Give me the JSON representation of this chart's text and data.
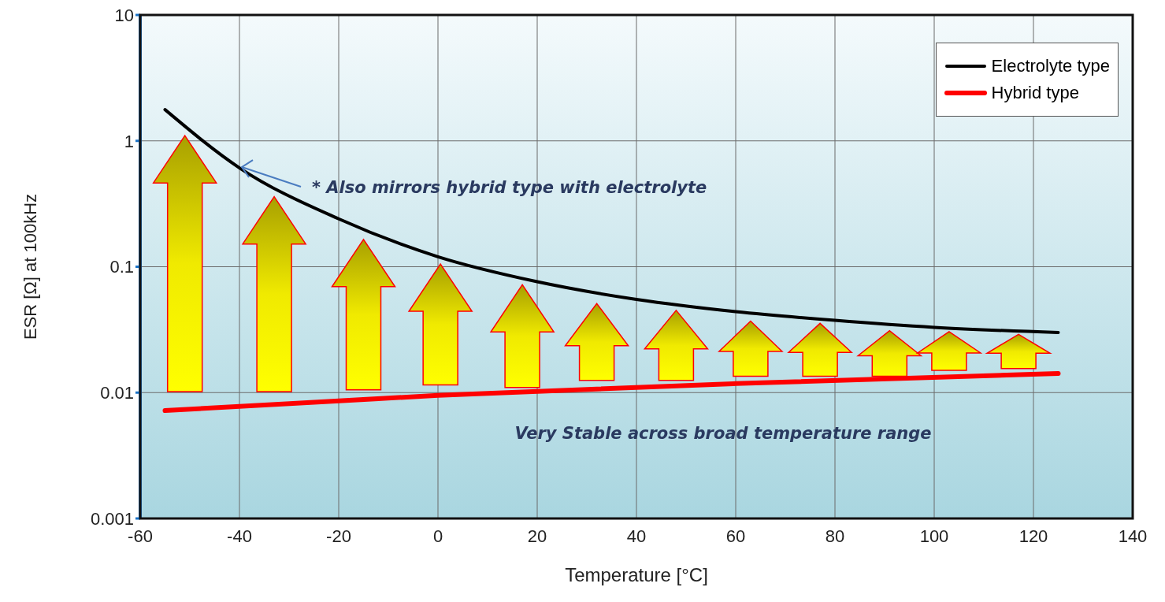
{
  "chart_data": {
    "type": "line",
    "xlabel": "Temperature [°C]",
    "ylabel": "ESR [Ω] at 100kHz",
    "series": [
      {
        "name": "Electrolyte type",
        "color": "#000000",
        "x": [
          -55,
          -40,
          -20,
          0,
          20,
          40,
          60,
          80,
          100,
          125
        ],
        "values": [
          1.77,
          0.61,
          0.24,
          0.12,
          0.076,
          0.055,
          0.044,
          0.0375,
          0.033,
          0.03
        ]
      },
      {
        "name": "Hybrid type",
        "color": "#ff0000",
        "x": [
          -55,
          0,
          60,
          125
        ],
        "values": [
          0.0072,
          0.0095,
          0.0118,
          0.0142
        ]
      }
    ],
    "xlim": [
      -60,
      140
    ],
    "xticks": [
      -60,
      -40,
      -20,
      0,
      20,
      40,
      60,
      80,
      100,
      120,
      140
    ],
    "ylim": [
      0.001,
      10
    ],
    "yticks": [
      0.001,
      0.01,
      0.1,
      1,
      10
    ],
    "log": "y",
    "grid": true,
    "legend": "top right",
    "marker": "none",
    "line_style": "solid",
    "annotations": [
      {
        "text": "* Also mirrors hybrid type with electrolyte",
        "x": -40,
        "y": 0.61
      },
      "Very Stable across broad temperature range"
    ]
  }
}
